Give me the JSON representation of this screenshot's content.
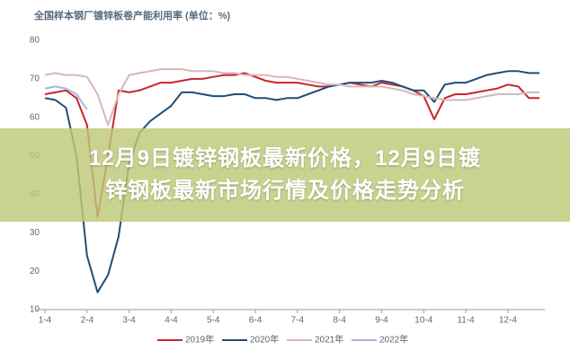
{
  "chart_data": {
    "type": "line",
    "title": "全国样本钢厂镀锌板卷产能利用率 (单位：%)",
    "categories": [
      "1-4",
      null,
      null,
      null,
      "2-4",
      null,
      null,
      null,
      "3-4",
      null,
      null,
      null,
      "4-4",
      null,
      null,
      null,
      "5-4",
      null,
      null,
      null,
      "6-4",
      null,
      null,
      null,
      "7-4",
      null,
      null,
      null,
      "8-4",
      null,
      null,
      null,
      "9-4",
      null,
      null,
      null,
      "10-4",
      null,
      null,
      null,
      "11-4",
      null,
      null,
      null,
      "12-4",
      null,
      null,
      null
    ],
    "series": [
      {
        "name": "2019年",
        "color": "#c8262a",
        "values": [
          66,
          66.5,
          67,
          65,
          58,
          34,
          50,
          67,
          66.5,
          67,
          68,
          69,
          69,
          69.5,
          70,
          70,
          70.5,
          71,
          71,
          71.5,
          70.5,
          69.5,
          69,
          69,
          69,
          68.5,
          68,
          68,
          68.5,
          69,
          68.5,
          68,
          69,
          68.5,
          68,
          67,
          65.5,
          59.5,
          65,
          66,
          66,
          66.5,
          67,
          67.5,
          68.5,
          68,
          65,
          65
        ]
      },
      {
        "name": "2020年",
        "color": "#1f4e79",
        "values": [
          65,
          64.5,
          62.5,
          50,
          24,
          14.5,
          19,
          29,
          48,
          56,
          59,
          61,
          63,
          66.5,
          66.5,
          66,
          65.5,
          65.5,
          66,
          66,
          65,
          65,
          64.5,
          65,
          65,
          66,
          67,
          68,
          68.5,
          69,
          69,
          69,
          69.5,
          69,
          68,
          67,
          67,
          64,
          68.5,
          69,
          69,
          70,
          71,
          71.5,
          72,
          72,
          71.5,
          71.5
        ]
      },
      {
        "name": "2021年",
        "color": "#d6b7ba",
        "values": [
          71,
          71.5,
          71,
          71,
          70.5,
          66,
          58,
          66,
          71,
          71.5,
          72,
          72.5,
          72.5,
          72.5,
          72,
          72,
          72,
          71.5,
          71.5,
          71,
          71,
          71,
          70.5,
          70.5,
          70,
          69.5,
          69,
          68.5,
          68.5,
          68,
          68,
          68,
          68,
          67.5,
          67,
          66,
          65.5,
          65,
          64.5,
          64.5,
          64.5,
          65,
          65.5,
          66,
          66,
          66,
          66.5,
          66.5
        ]
      },
      {
        "name": "2022年",
        "color": "#a9b6e3",
        "values": [
          67.5,
          68,
          67.5,
          66,
          62,
          null,
          null,
          null,
          null,
          null,
          null,
          null,
          null,
          null,
          null,
          null,
          null,
          null,
          null,
          null,
          null,
          null,
          null,
          null,
          null,
          null,
          null,
          null,
          null,
          null,
          null,
          null,
          null,
          null,
          null,
          null,
          null,
          null,
          null,
          null,
          null,
          null,
          null,
          null,
          null,
          null,
          null,
          null
        ]
      }
    ],
    "ylim": [
      10,
      80
    ],
    "yticks": [
      10,
      20,
      30,
      40,
      50,
      60,
      70,
      80
    ],
    "grid": false
  },
  "banner_lines": [
    "12月9日镀锌钢板最新价格，12月9日镀",
    "锌钢板最新市场行情及价格走势分析"
  ]
}
